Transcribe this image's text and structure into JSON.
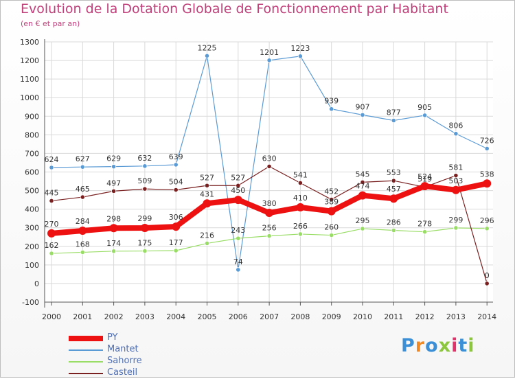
{
  "title": "Evolution de la Dotation Globale de Fonctionnement par Habitant",
  "subtitle": "(en € et par an)",
  "logo": {
    "text": "Proxiti",
    "letter_colors": [
      "#3a8fd6",
      "#f08a24",
      "#3a8fd6",
      "#8cc63f",
      "#e0336c",
      "#3a8fd6",
      "#8cc63f"
    ]
  },
  "chart_data": {
    "type": "line",
    "x": [
      "2000",
      "2001",
      "2002",
      "2003",
      "2004",
      "2005",
      "2006",
      "2007",
      "2008",
      "2009",
      "2010",
      "2011",
      "2012",
      "2013",
      "2014"
    ],
    "ylim": [
      -100,
      1300
    ],
    "yticks": [
      -100,
      0,
      100,
      200,
      300,
      400,
      500,
      600,
      700,
      800,
      900,
      1000,
      1100,
      1200,
      1300
    ],
    "grid": true,
    "legend_position": "bottom-left",
    "series": [
      {
        "name": "Mantet",
        "color": "#5b9bd5",
        "values": [
          624,
          627,
          629,
          632,
          639,
          1225,
          74,
          1201,
          1223,
          939,
          907,
          877,
          905,
          806,
          726
        ]
      },
      {
        "name": "Sahorre",
        "color": "#99dd66",
        "values": [
          162,
          168,
          174,
          175,
          177,
          216,
          243,
          256,
          266,
          260,
          295,
          286,
          278,
          299,
          296
        ]
      },
      {
        "name": "Casteil",
        "color": "#7a2020",
        "values": [
          445,
          465,
          497,
          509,
          504,
          527,
          527,
          630,
          541,
          452,
          545,
          553,
          519,
          581,
          0
        ]
      },
      {
        "name": "PY",
        "color": "#ee1111",
        "values": [
          270,
          284,
          298,
          299,
          306,
          431,
          450,
          380,
          410,
          389,
          474,
          457,
          524,
          503,
          538
        ]
      }
    ]
  }
}
